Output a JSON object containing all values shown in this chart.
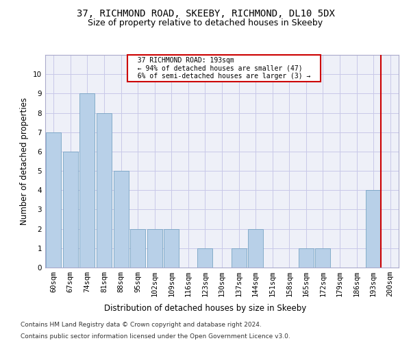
{
  "title_line1": "37, RICHMOND ROAD, SKEEBY, RICHMOND, DL10 5DX",
  "title_line2": "Size of property relative to detached houses in Skeeby",
  "xlabel": "Distribution of detached houses by size in Skeeby",
  "ylabel": "Number of detached properties",
  "categories": [
    "60sqm",
    "67sqm",
    "74sqm",
    "81sqm",
    "88sqm",
    "95sqm",
    "102sqm",
    "109sqm",
    "116sqm",
    "123sqm",
    "130sqm",
    "137sqm",
    "144sqm",
    "151sqm",
    "158sqm",
    "165sqm",
    "172sqm",
    "179sqm",
    "186sqm",
    "193sqm",
    "200sqm"
  ],
  "values": [
    7,
    6,
    9,
    8,
    5,
    2,
    2,
    2,
    0,
    1,
    0,
    1,
    2,
    0,
    0,
    1,
    1,
    0,
    0,
    4,
    0
  ],
  "bar_color": "#b8d0e8",
  "bar_edge_color": "#6699bb",
  "highlight_index": 19,
  "highlight_line_color": "#cc0000",
  "annotation_text": "  37 RICHMOND ROAD: 193sqm  \n  ← 94% of detached houses are smaller (47)  \n  6% of semi-detached houses are larger (3) →  ",
  "annotation_box_color": "#cc0000",
  "ylim": [
    0,
    11
  ],
  "yticks": [
    0,
    1,
    2,
    3,
    4,
    5,
    6,
    7,
    8,
    9,
    10,
    11
  ],
  "grid_color": "#c8c8e8",
  "background_color": "#eef0f8",
  "footer_line1": "Contains HM Land Registry data © Crown copyright and database right 2024.",
  "footer_line2": "Contains public sector information licensed under the Open Government Licence v3.0.",
  "title_fontsize": 10,
  "subtitle_fontsize": 9,
  "axis_label_fontsize": 8.5,
  "tick_fontsize": 7.5,
  "footer_fontsize": 6.5
}
